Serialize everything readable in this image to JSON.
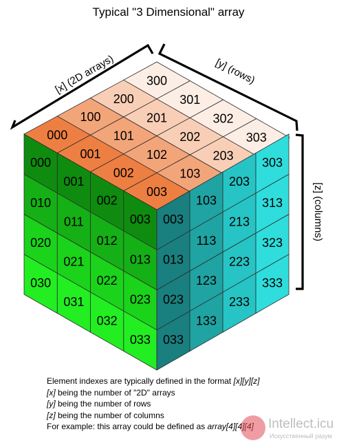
{
  "title": "Typical \"3 Dimensional\" array",
  "labels": {
    "x_axis": "[x] (2D arrays)",
    "y_axis": "[y] (rows)",
    "z_axis": "[z] (columns)"
  },
  "top_face": [
    [
      "000",
      "001",
      "002",
      "003"
    ],
    [
      "100",
      "101",
      "102",
      "103"
    ],
    [
      "200",
      "201",
      "202",
      "203"
    ],
    [
      "300",
      "301",
      "302",
      "303"
    ]
  ],
  "left_face": [
    [
      "000",
      "001",
      "002",
      "003"
    ],
    [
      "010",
      "011",
      "012",
      "013"
    ],
    [
      "020",
      "021",
      "022",
      "023"
    ],
    [
      "030",
      "031",
      "032",
      "033"
    ]
  ],
  "right_face": [
    [
      "003",
      "103",
      "203",
      "303"
    ],
    [
      "013",
      "113",
      "213",
      "313"
    ],
    [
      "023",
      "123",
      "223",
      "323"
    ],
    [
      "033",
      "133",
      "233",
      "333"
    ]
  ],
  "colors": {
    "top": [
      "#ee7f42",
      "#f3a57a",
      "#f8cfb6",
      "#fdeee5"
    ],
    "left": [
      "#0f8c0f",
      "#15b015",
      "#1ad31a",
      "#22ee22"
    ],
    "right": [
      "#1a7f7f",
      "#20a3a3",
      "#26c4c4",
      "#2fdddd"
    ]
  },
  "caption": {
    "line1_pre": "Element indexes are typically defined in the format ",
    "line1_em": "[x][y][z]",
    "line2_em": "[x]",
    "line2_rest": " being the number of \"2D\" arrays",
    "line3_em": "[y]",
    "line3_rest": " being the number of rows",
    "line4_em": "[z]",
    "line4_rest": " being the number of columns",
    "line5_pre": "For example: this array could be defined as ",
    "line5_em": "array[4][4][4]"
  },
  "watermark": {
    "name": "Intellect.icu",
    "sub": "Искусственный разум"
  }
}
